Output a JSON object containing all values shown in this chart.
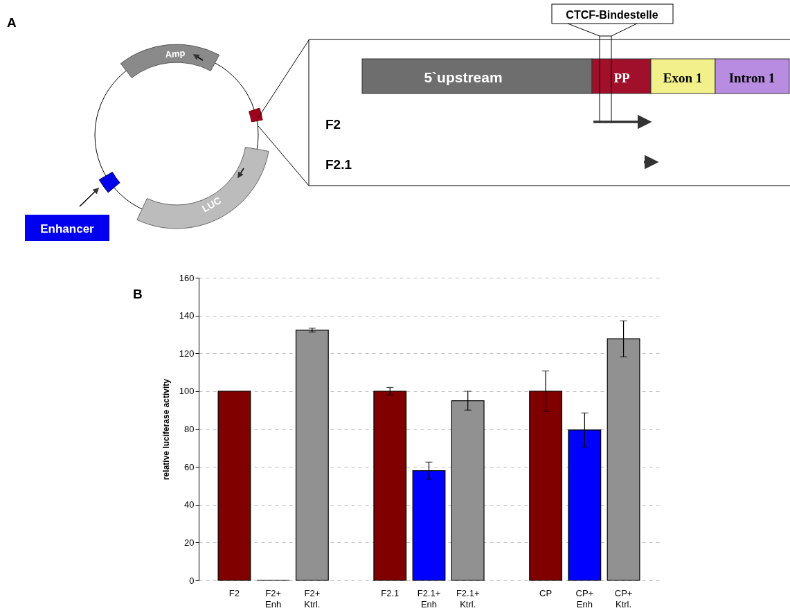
{
  "chart_data": [
    {
      "type": "other",
      "title": "A",
      "annotations": [
        "Amp",
        "LUC",
        "Enhancer",
        "CTCF-Bindestelle",
        "5`upstream",
        "PP",
        "Exon 1",
        "Intron 1",
        "F2",
        "F2.1"
      ]
    },
    {
      "type": "bar",
      "title": "B",
      "ylabel": "relative luciferase activity",
      "categories": [
        "F2",
        "F2+\nEnh",
        "F2+\nKtrl.",
        null,
        "F2.1",
        "F2.1+\nEnh",
        "F2.1+\nKtrl.",
        null,
        "CP",
        "CP+\nEnh",
        "CP+\nKtrl."
      ],
      "values": [
        100,
        0,
        132.3,
        null,
        100,
        58,
        95,
        null,
        100,
        79.5,
        127.7
      ],
      "colors": [
        "#800000",
        "#000000",
        "#919191",
        null,
        "#800000",
        "#0000ff",
        "#919191",
        null,
        "#800000",
        "#0000ff",
        "#919191"
      ],
      "errors": [
        null,
        null,
        1,
        null,
        2,
        4.5,
        5,
        null,
        10.7,
        9,
        9.5
      ],
      "ylim": [
        0,
        160
      ],
      "yticks": [
        0,
        20,
        40,
        60,
        80,
        100,
        120,
        140,
        160
      ],
      "grid": "y"
    }
  ]
}
